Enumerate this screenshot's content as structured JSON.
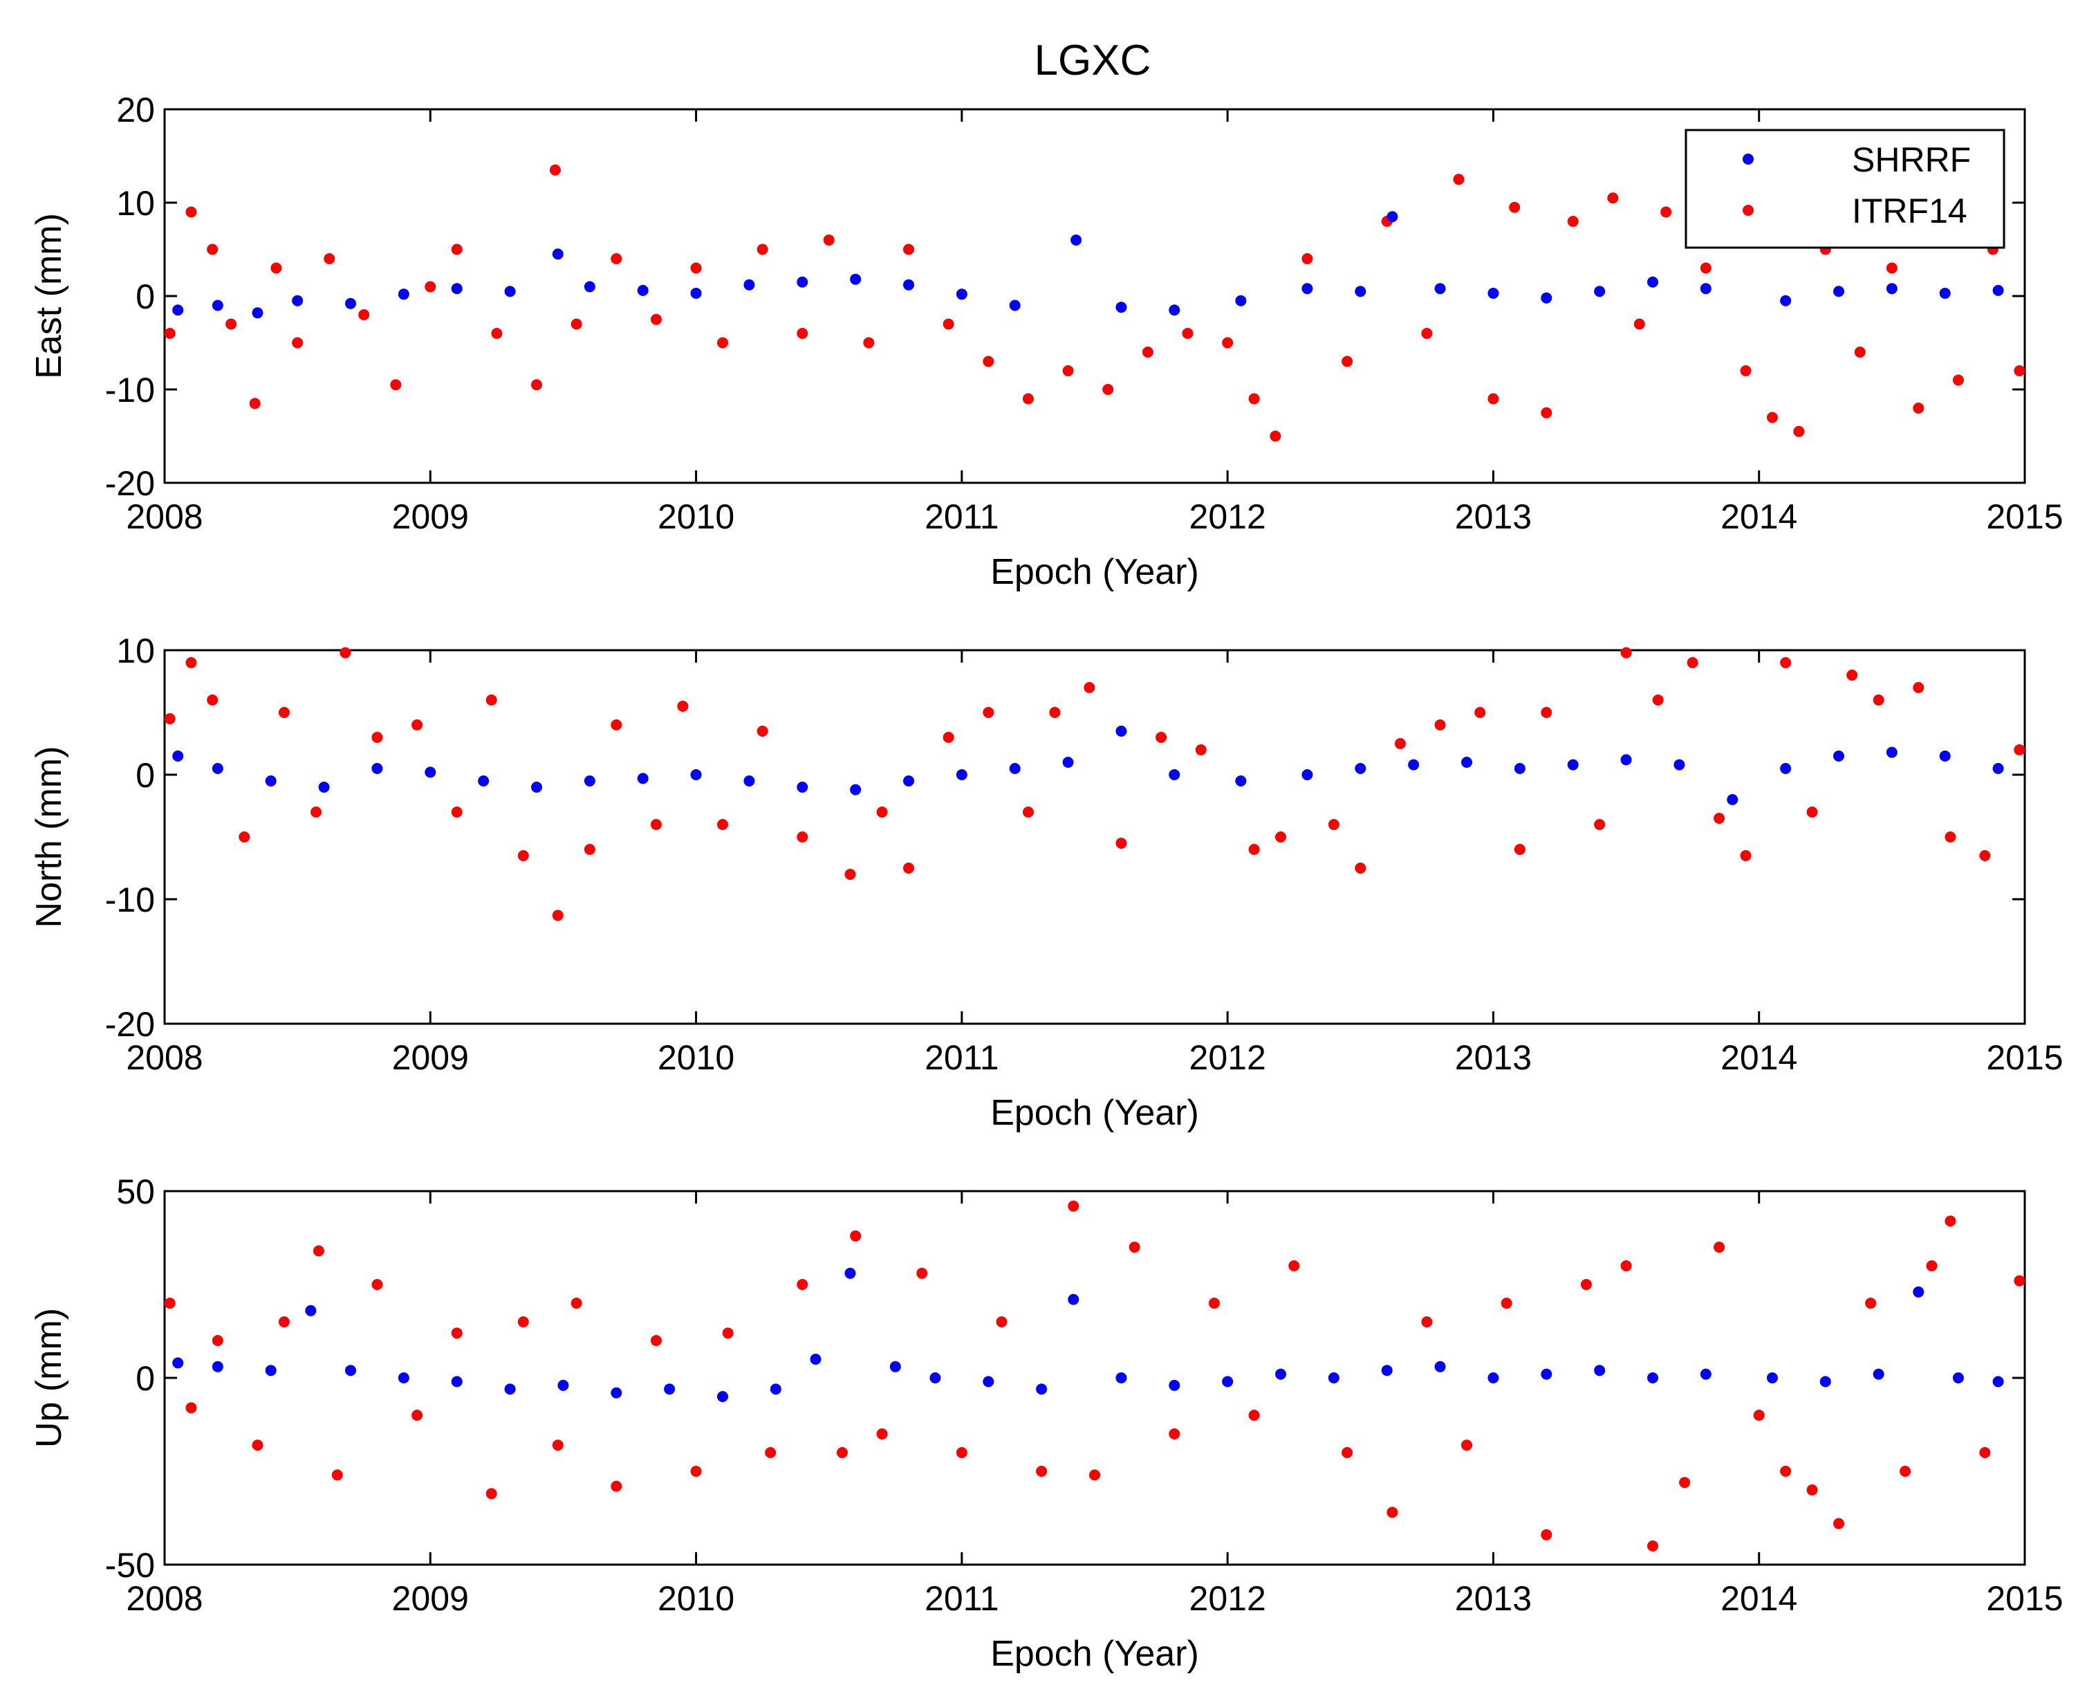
{
  "title": "LGXC",
  "legend": {
    "placement": "top-right",
    "entries": [
      {
        "name": "SHRRF",
        "color": "#0000ff"
      },
      {
        "name": "ITRF14",
        "color": "#ff0000"
      }
    ]
  },
  "chart_data": [
    {
      "type": "scatter",
      "panel": "east",
      "ylabel": "East (mm)",
      "xlabel": "Epoch (Year)",
      "xlim": [
        2008,
        2015
      ],
      "ylim": [
        -20,
        20
      ],
      "xticks": [
        2008,
        2009,
        2010,
        2011,
        2012,
        2013,
        2014,
        2015
      ],
      "yticks": [
        -20,
        -10,
        0,
        10,
        20
      ],
      "grid": false,
      "legend": "top-right",
      "series": [
        {
          "name": "SHRRF",
          "color": "#0000ff",
          "x": [
            2008.05,
            2008.2,
            2008.35,
            2008.5,
            2008.7,
            2008.9,
            2009.1,
            2009.3,
            2009.48,
            2009.6,
            2009.8,
            2010.0,
            2010.2,
            2010.4,
            2010.6,
            2010.8,
            2011.0,
            2011.2,
            2011.43,
            2011.6,
            2011.8,
            2012.05,
            2012.3,
            2012.5,
            2012.62,
            2012.8,
            2013.0,
            2013.2,
            2013.4,
            2013.6,
            2013.8,
            2014.1,
            2014.3,
            2014.5,
            2014.7,
            2014.9
          ],
          "y": [
            -1.5,
            -1.0,
            -1.8,
            -0.5,
            -0.8,
            0.2,
            0.8,
            0.5,
            4.5,
            1.0,
            0.6,
            0.3,
            1.2,
            1.5,
            1.8,
            1.2,
            0.2,
            -1.0,
            6.0,
            -1.2,
            -1.5,
            -0.5,
            0.8,
            0.5,
            8.5,
            0.8,
            0.3,
            -0.2,
            0.5,
            1.5,
            0.8,
            -0.5,
            0.5,
            0.8,
            0.3,
            0.6
          ]
        },
        {
          "name": "ITRF14",
          "color": "#ff0000",
          "x": [
            2008.02,
            2008.1,
            2008.18,
            2008.25,
            2008.34,
            2008.42,
            2008.5,
            2008.62,
            2008.75,
            2008.87,
            2009.0,
            2009.1,
            2009.25,
            2009.4,
            2009.47,
            2009.55,
            2009.7,
            2009.85,
            2010.0,
            2010.1,
            2010.25,
            2010.4,
            2010.5,
            2010.65,
            2010.8,
            2010.95,
            2011.1,
            2011.25,
            2011.4,
            2011.55,
            2011.7,
            2011.85,
            2012.0,
            2012.1,
            2012.18,
            2012.3,
            2012.45,
            2012.6,
            2012.75,
            2012.87,
            2013.0,
            2013.08,
            2013.2,
            2013.3,
            2013.45,
            2013.55,
            2013.65,
            2013.8,
            2013.95,
            2014.05,
            2014.15,
            2014.25,
            2014.38,
            2014.5,
            2014.6,
            2014.75,
            2014.88,
            2014.98
          ],
          "y": [
            -4.0,
            9.0,
            5.0,
            -3.0,
            -11.5,
            3.0,
            -5.0,
            4.0,
            -2.0,
            -9.5,
            1.0,
            5.0,
            -4.0,
            -9.5,
            13.5,
            -3.0,
            4.0,
            -2.5,
            3.0,
            -5.0,
            5.0,
            -4.0,
            6.0,
            -5.0,
            5.0,
            -3.0,
            -7.0,
            -11.0,
            -8.0,
            -10.0,
            -6.0,
            -4.0,
            -5.0,
            -11.0,
            -15.0,
            4.0,
            -7.0,
            8.0,
            -4.0,
            12.5,
            -11.0,
            9.5,
            -12.5,
            8.0,
            10.5,
            -3.0,
            9.0,
            3.0,
            -8.0,
            -13.0,
            -14.5,
            5.0,
            -6.0,
            3.0,
            -12.0,
            -9.0,
            5.0,
            -8.0
          ]
        }
      ]
    },
    {
      "type": "scatter",
      "panel": "north",
      "ylabel": "North (mm)",
      "xlabel": "Epoch (Year)",
      "xlim": [
        2008,
        2015
      ],
      "ylim": [
        -20,
        10
      ],
      "xticks": [
        2008,
        2009,
        2010,
        2011,
        2012,
        2013,
        2014,
        2015
      ],
      "yticks": [
        -20,
        -10,
        0,
        10
      ],
      "grid": false,
      "series": [
        {
          "name": "SHRRF",
          "color": "#0000ff",
          "x": [
            2008.05,
            2008.2,
            2008.4,
            2008.6,
            2008.8,
            2009.0,
            2009.2,
            2009.4,
            2009.6,
            2009.8,
            2010.0,
            2010.2,
            2010.4,
            2010.6,
            2010.8,
            2011.0,
            2011.2,
            2011.4,
            2011.6,
            2011.8,
            2012.05,
            2012.3,
            2012.5,
            2012.7,
            2012.9,
            2013.1,
            2013.3,
            2013.5,
            2013.7,
            2013.9,
            2014.1,
            2014.3,
            2014.5,
            2014.7,
            2014.9
          ],
          "y": [
            1.5,
            0.5,
            -0.5,
            -1.0,
            0.5,
            0.2,
            -0.5,
            -1.0,
            -0.5,
            -0.3,
            0.0,
            -0.5,
            -1.0,
            -1.2,
            -0.5,
            0.0,
            0.5,
            1.0,
            3.5,
            0.0,
            -0.5,
            0.0,
            0.5,
            0.8,
            1.0,
            0.5,
            0.8,
            1.2,
            0.8,
            -2.0,
            0.5,
            1.5,
            1.8,
            1.5,
            0.5
          ]
        },
        {
          "name": "ITRF14",
          "color": "#ff0000",
          "x": [
            2008.02,
            2008.1,
            2008.18,
            2008.3,
            2008.45,
            2008.57,
            2008.68,
            2008.8,
            2008.95,
            2009.1,
            2009.23,
            2009.35,
            2009.48,
            2009.6,
            2009.7,
            2009.85,
            2009.95,
            2010.1,
            2010.25,
            2010.4,
            2010.58,
            2010.7,
            2010.8,
            2010.95,
            2011.1,
            2011.25,
            2011.35,
            2011.48,
            2011.6,
            2011.75,
            2011.9,
            2012.1,
            2012.2,
            2012.4,
            2012.5,
            2012.65,
            2012.8,
            2012.95,
            2013.1,
            2013.2,
            2013.4,
            2013.5,
            2013.62,
            2013.75,
            2013.85,
            2013.95,
            2014.1,
            2014.2,
            2014.35,
            2014.45,
            2014.6,
            2014.72,
            2014.85,
            2014.98
          ],
          "y": [
            4.5,
            9.0,
            6.0,
            -5.0,
            5.0,
            -3.0,
            9.8,
            3.0,
            4.0,
            -3.0,
            6.0,
            -6.5,
            -11.3,
            -6.0,
            4.0,
            -4.0,
            5.5,
            -4.0,
            3.5,
            -5.0,
            -8.0,
            -3.0,
            -7.5,
            3.0,
            5.0,
            -3.0,
            5.0,
            7.0,
            -5.5,
            3.0,
            2.0,
            -6.0,
            -5.0,
            -4.0,
            -7.5,
            2.5,
            4.0,
            5.0,
            -6.0,
            5.0,
            -4.0,
            9.8,
            6.0,
            9.0,
            -3.5,
            -6.5,
            9.0,
            -3.0,
            8.0,
            6.0,
            7.0,
            -5.0,
            -6.5,
            2.0
          ]
        }
      ]
    },
    {
      "type": "scatter",
      "panel": "up",
      "ylabel": "Up (mm)",
      "xlabel": "Epoch (Year)",
      "xlim": [
        2008,
        2015
      ],
      "ylim": [
        -50,
        50
      ],
      "xticks": [
        2008,
        2009,
        2010,
        2011,
        2012,
        2013,
        2014,
        2015
      ],
      "yticks": [
        -50,
        0,
        50
      ],
      "grid": false,
      "series": [
        {
          "name": "SHRRF",
          "color": "#0000ff",
          "x": [
            2008.05,
            2008.2,
            2008.4,
            2008.55,
            2008.7,
            2008.9,
            2009.1,
            2009.3,
            2009.5,
            2009.7,
            2009.9,
            2010.1,
            2010.3,
            2010.45,
            2010.58,
            2010.75,
            2010.9,
            2011.1,
            2011.3,
            2011.42,
            2011.6,
            2011.8,
            2012.0,
            2012.2,
            2012.4,
            2012.6,
            2012.8,
            2013.0,
            2013.2,
            2013.4,
            2013.6,
            2013.8,
            2014.05,
            2014.25,
            2014.45,
            2014.6,
            2014.75,
            2014.9
          ],
          "y": [
            4.0,
            3.0,
            2.0,
            18.0,
            2.0,
            0.0,
            -1.0,
            -3.0,
            -2.0,
            -4.0,
            -3.0,
            -5.0,
            -3.0,
            5.0,
            28.0,
            3.0,
            0.0,
            -1.0,
            -3.0,
            21.0,
            0.0,
            -2.0,
            -1.0,
            1.0,
            0.0,
            2.0,
            3.0,
            0.0,
            1.0,
            2.0,
            0.0,
            1.0,
            0.0,
            -1.0,
            1.0,
            23.0,
            0.0,
            -1.0
          ]
        },
        {
          "name": "ITRF14",
          "color": "#ff0000",
          "x": [
            2008.02,
            2008.1,
            2008.2,
            2008.35,
            2008.45,
            2008.58,
            2008.65,
            2008.8,
            2008.95,
            2009.1,
            2009.23,
            2009.35,
            2009.48,
            2009.55,
            2009.7,
            2009.85,
            2010.0,
            2010.12,
            2010.28,
            2010.4,
            2010.55,
            2010.6,
            2010.7,
            2010.85,
            2011.0,
            2011.15,
            2011.3,
            2011.42,
            2011.5,
            2011.65,
            2011.8,
            2011.95,
            2012.1,
            2012.25,
            2012.45,
            2012.62,
            2012.75,
            2012.9,
            2013.05,
            2013.2,
            2013.35,
            2013.5,
            2013.6,
            2013.72,
            2013.85,
            2014.0,
            2014.1,
            2014.2,
            2014.3,
            2014.42,
            2014.55,
            2014.65,
            2014.72,
            2014.85,
            2014.98
          ],
          "y": [
            20.0,
            -8.0,
            10.0,
            -18.0,
            15.0,
            34.0,
            -26.0,
            25.0,
            -10.0,
            12.0,
            -31.0,
            15.0,
            -18.0,
            20.0,
            -29.0,
            10.0,
            -25.0,
            12.0,
            -20.0,
            25.0,
            -20.0,
            38.0,
            -15.0,
            28.0,
            -20.0,
            15.0,
            -25.0,
            46.0,
            -26.0,
            35.0,
            -15.0,
            20.0,
            -10.0,
            30.0,
            -20.0,
            -36.0,
            15.0,
            -18.0,
            20.0,
            -42.0,
            25.0,
            30.0,
            -45.0,
            -28.0,
            35.0,
            -10.0,
            -25.0,
            -30.0,
            -39.0,
            20.0,
            -25.0,
            30.0,
            42.0,
            -20.0,
            26.0
          ]
        }
      ]
    }
  ]
}
